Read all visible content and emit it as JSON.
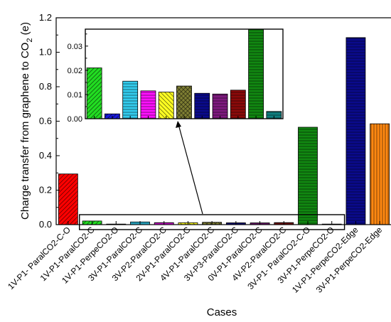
{
  "chart_data": {
    "type": "bar",
    "xlabel": "Cases",
    "ylabel_prefix": "Charge transfer from graphene to CO",
    "ylabel_sub": "2",
    "ylabel_suffix": " (e)",
    "ylim": [
      0,
      1.2
    ],
    "yticks": [
      "0.0",
      "0.2",
      "0.4",
      "0.6",
      "0.8",
      "1.0",
      "1.2"
    ],
    "categories": [
      "1V-P1- ParalCO2-C-O",
      "1V-P1-ParalCO2-C",
      "1V-P1-PerpeCO2-O",
      "3V-P1-ParalCO2-C",
      "3V-P2-ParalCO2-C",
      "2V-P1-ParalCO2-C",
      "4V-P1-ParalCO2-C",
      "3V-P3-ParalCO2-C",
      "0V-P1-ParalCO2-C",
      "4V-P2-ParalCO2-C",
      "3V-P1- ParalCO2-C-O",
      "3V-P1-PerpeCO2-O",
      "1V-P1-PerpeCO2-Edge",
      "3V-P1-PerpeCO2-Edge"
    ],
    "values": [
      0.294,
      0.021,
      0.002,
      0.0155,
      0.0115,
      0.011,
      0.0135,
      0.0105,
      0.0102,
      0.0118,
      0.565,
      0.003,
      1.085,
      0.585
    ],
    "colors": [
      "#ff0000",
      "#22dd22",
      "#1a1adc",
      "#33ccee",
      "#ff11ff",
      "#ffff22",
      "#7f7f33",
      "#0a0a8c",
      "#7f1a7f",
      "#8c0a0a",
      "#118811",
      "#117f7f",
      "#0a0a8c",
      "#ff8811"
    ],
    "patterns": [
      "diag-fwd",
      "diag-fwd",
      "diag-fwd",
      "horiz",
      "horiz",
      "diag-back",
      "diag-cross",
      "horiz",
      "horiz",
      "horiz",
      "horiz",
      "horiz",
      "horiz",
      "vert"
    ],
    "inset": {
      "categories_from_index": 1,
      "categories_to_index": 11,
      "ylim": [
        0,
        0.037
      ],
      "yticks": [
        "0.00",
        "0.01",
        "0.02",
        "0.03"
      ]
    }
  }
}
